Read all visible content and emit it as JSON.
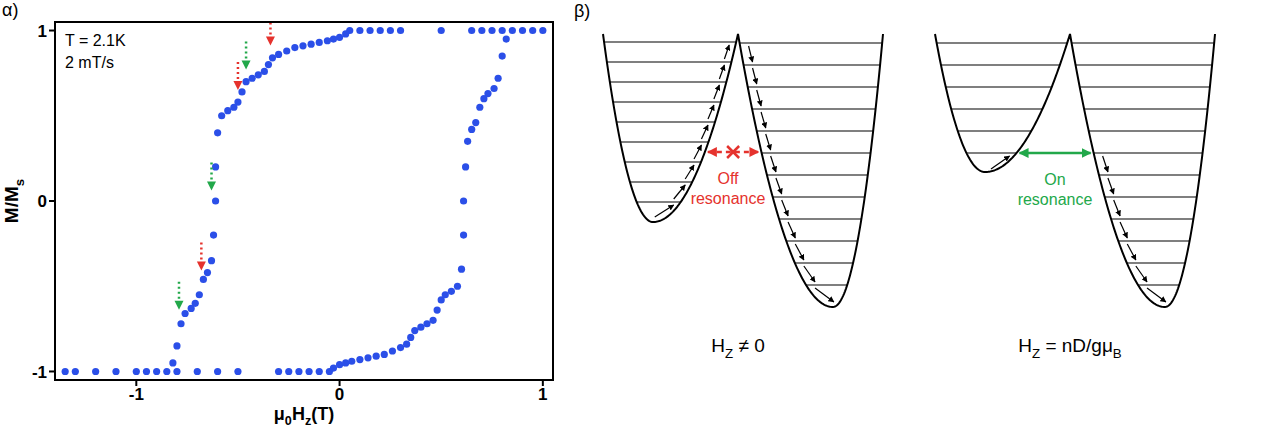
{
  "panel_label": "α)",
  "chart_data": {
    "type": "scatter",
    "marker": "circle",
    "color": "#2b4fe8",
    "grid": false,
    "x": [
      1.0,
      0.95,
      0.9,
      0.85,
      0.8,
      0.75,
      0.7,
      0.65,
      0.5,
      0.3,
      0.25,
      0.2,
      0.15,
      0.1,
      0.05,
      0.03,
      0.0,
      -0.03,
      -0.06,
      -0.1,
      -0.14,
      -0.18,
      -0.22,
      -0.26,
      -0.3,
      -0.33,
      -0.35,
      -0.37,
      -0.4,
      -0.43,
      -0.46,
      -0.48,
      -0.5,
      -0.52,
      -0.55,
      -0.58,
      -0.6,
      -0.61,
      -0.61,
      -0.62,
      -0.63,
      -0.65,
      -0.67,
      -0.69,
      -0.71,
      -0.73,
      -0.76,
      -0.78,
      -0.8,
      -0.82,
      -0.85,
      -0.9,
      -0.95,
      -1.0,
      -1.1,
      -1.2,
      -1.3,
      -1.35,
      -0.8,
      -0.7,
      -0.6,
      -0.5,
      -0.3,
      -0.25,
      -0.2,
      -0.15,
      -0.1,
      -0.05,
      -0.03,
      0.0,
      0.03,
      0.06,
      0.1,
      0.14,
      0.18,
      0.22,
      0.26,
      0.3,
      0.33,
      0.35,
      0.37,
      0.4,
      0.43,
      0.46,
      0.48,
      0.5,
      0.52,
      0.55,
      0.58,
      0.6,
      0.61,
      0.61,
      0.62,
      0.63,
      0.65,
      0.67,
      0.69,
      0.71,
      0.73,
      0.76,
      0.78,
      0.8,
      0.82
    ],
    "values": [
      1,
      1,
      1,
      1,
      1,
      1,
      1,
      1,
      1,
      1,
      1,
      1,
      1,
      1,
      1,
      0.98,
      0.96,
      0.95,
      0.94,
      0.93,
      0.92,
      0.91,
      0.9,
      0.88,
      0.86,
      0.84,
      0.8,
      0.76,
      0.74,
      0.72,
      0.7,
      0.64,
      0.58,
      0.55,
      0.53,
      0.5,
      0.4,
      0.2,
      0.0,
      -0.2,
      -0.35,
      -0.42,
      -0.46,
      -0.55,
      -0.6,
      -0.63,
      -0.66,
      -0.72,
      -0.85,
      -0.95,
      -1,
      -1,
      -1,
      -1,
      -1,
      -1,
      -1,
      -1,
      -1,
      -1,
      -1,
      -1,
      -1,
      -1,
      -1,
      -1,
      -1,
      -1,
      -0.98,
      -0.96,
      -0.95,
      -0.94,
      -0.93,
      -0.92,
      -0.91,
      -0.9,
      -0.88,
      -0.86,
      -0.84,
      -0.8,
      -0.76,
      -0.74,
      -0.72,
      -0.7,
      -0.64,
      -0.58,
      -0.55,
      -0.53,
      -0.5,
      -0.4,
      -0.2,
      0.0,
      0.2,
      0.35,
      0.42,
      0.46,
      0.55,
      0.6,
      0.63,
      0.66,
      0.72,
      0.85,
      0.95
    ],
    "xlim": [
      -1.4,
      1.05
    ],
    "ylim": [
      -1.05,
      1.05
    ],
    "xticks": [
      -1,
      0,
      1
    ],
    "yticks": [
      -1,
      0,
      1
    ],
    "xlabel": [
      {
        "text": "μ",
        "sub": "0"
      },
      {
        "text": "H",
        "sub": "z"
      },
      {
        "text": "(T)"
      }
    ],
    "ylabel": [
      {
        "text": "M/M",
        "sub": "s"
      }
    ],
    "annotations": [
      "T = 2.1K",
      "2 mT/s"
    ],
    "arrows": [
      {
        "x": -0.34,
        "y": 0.9,
        "color": "#e5322d"
      },
      {
        "x": -0.5,
        "y": 0.64,
        "color": "#e5322d"
      },
      {
        "x": -0.68,
        "y": -0.42,
        "color": "#e5322d"
      },
      {
        "x": -0.46,
        "y": 0.76,
        "color": "#22a84a"
      },
      {
        "x": -0.63,
        "y": 0.05,
        "color": "#22a84a"
      },
      {
        "x": -0.79,
        "y": -0.65,
        "color": "#22a84a"
      }
    ]
  },
  "diagram": {
    "panel_label": "β)",
    "panels": [
      {
        "label": [
          "Off",
          "resonance"
        ],
        "color": "#e5322d",
        "caption": [
          {
            "text": "H",
            "sub": "Z"
          },
          {
            "text": " ≠ 0"
          }
        ]
      },
      {
        "label": [
          "On",
          "resonance"
        ],
        "color": "#22a84a",
        "caption": [
          {
            "text": "H",
            "sub": "Z"
          },
          {
            "text": " = nD/gμ",
            "sub": "B"
          }
        ]
      }
    ]
  }
}
